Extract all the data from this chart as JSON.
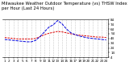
{
  "title": "Milwaukee Weather Outdoor Temperature (vs) THSW Index per Hour (Last 24 Hours)",
  "hours": [
    1,
    2,
    3,
    4,
    5,
    6,
    7,
    8,
    9,
    10,
    11,
    12,
    13,
    14,
    15,
    16,
    17,
    18,
    19,
    20,
    21,
    22,
    23,
    24
  ],
  "temp": [
    46,
    45,
    44,
    43,
    43,
    43,
    43,
    44,
    48,
    52,
    55,
    57,
    59,
    58,
    56,
    54,
    52,
    51,
    50,
    49,
    48,
    47,
    47,
    46
  ],
  "thsw": [
    42,
    41,
    40,
    39,
    38,
    37,
    37,
    40,
    48,
    58,
    68,
    73,
    82,
    75,
    64,
    56,
    52,
    49,
    47,
    45,
    44,
    43,
    42,
    41
  ],
  "temp_color": "#dd0000",
  "thsw_color": "#0000dd",
  "bg_color": "#ffffff",
  "plot_bg": "#ffffff",
  "ylim": [
    4,
    84
  ],
  "yticks": [
    4,
    14,
    24,
    34,
    44,
    54,
    64,
    74,
    84
  ],
  "grid_color": "#999999",
  "title_fontsize": 3.8,
  "tick_fontsize": 3.0
}
